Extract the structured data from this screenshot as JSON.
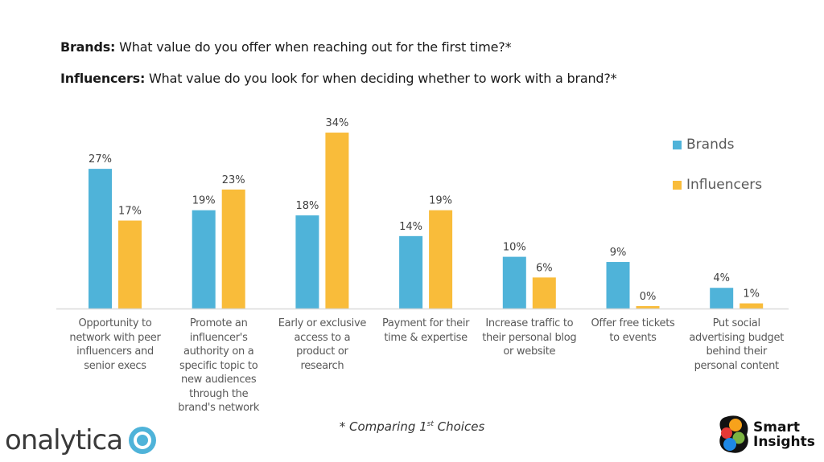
{
  "questions": {
    "q1_label": "Brands:",
    "q1_text": " What value do you offer when reaching out for the first time?*",
    "q2_label": "Influencers:",
    "q2_text": " What value do you look for when deciding whether to work with a brand?*"
  },
  "chart_data": {
    "type": "bar",
    "title": "",
    "xlabel": "",
    "ylabel": "",
    "ylim": [
      0,
      34
    ],
    "grid": false,
    "legend_position": "top-right",
    "value_suffix": "%",
    "categories": [
      "Opportunity to network with peer influencers and senior execs",
      "Promote an influencer's authority on a specific topic to new audiences through the brand's network",
      "Early or exclusive access to a product or research",
      "Payment for their time & expertise",
      "Increase traffic to their personal blog or website",
      "Offer free tickets to events",
      "Put social advertising budget behind their personal content"
    ],
    "category_lines": [
      [
        "Opportunity to",
        "network with peer",
        "influencers and",
        "senior execs"
      ],
      [
        "Promote an",
        "influencer's",
        "authority on a",
        "specific topic to",
        "new audiences",
        "through the",
        "brand's network"
      ],
      [
        "Early or exclusive",
        "access to a",
        "product or",
        "research"
      ],
      [
        "Payment for their",
        "time & expertise"
      ],
      [
        "Increase traffic to",
        "their personal blog",
        "or website"
      ],
      [
        "Offer free tickets",
        "to events"
      ],
      [
        "Put social",
        "advertising budget",
        "behind their",
        "personal content"
      ]
    ],
    "series": [
      {
        "name": "Brands",
        "color": "#4FB3D9",
        "values": [
          27,
          19,
          18,
          14,
          10,
          9,
          4
        ]
      },
      {
        "name": "Influencers",
        "color": "#F9BC3A",
        "values": [
          17,
          23,
          34,
          19,
          6,
          0,
          1
        ]
      }
    ]
  },
  "footnote": {
    "prefix": "* Comparing 1",
    "sup": "st",
    "suffix": " Choices"
  },
  "logos": {
    "onalytica": "onalytica",
    "smart_insights_line1": "Smart",
    "smart_insights_line2": "Insights"
  }
}
